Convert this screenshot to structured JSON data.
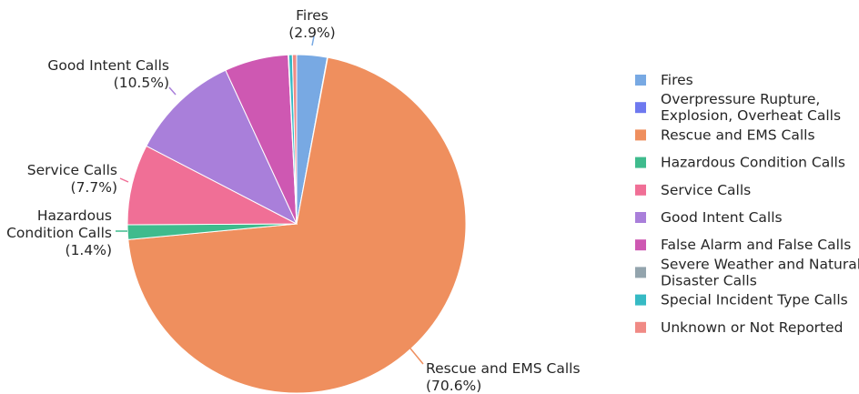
{
  "chart_data": {
    "type": "pie",
    "slices": [
      {
        "name": "Fires",
        "value": 2.9,
        "color": "#78a9e3",
        "label_lines": [
          "Fires",
          "(2.9%)"
        ]
      },
      {
        "name": "Overpressure Rupture, Explosion, Overheat Calls",
        "value": 0.05,
        "color": "#6e79ef",
        "legend_lines": [
          "Overpressure Rupture,",
          "Explosion, Overheat Calls"
        ]
      },
      {
        "name": "Rescue and EMS Calls",
        "value": 70.6,
        "color": "#ef8f5e",
        "label_lines": [
          "Rescue and EMS Calls",
          "(70.6%)"
        ]
      },
      {
        "name": "Hazardous Condition Calls",
        "value": 1.4,
        "color": "#3fbb8d",
        "label_lines": [
          "Hazardous",
          "Condition Calls",
          "(1.4%)"
        ]
      },
      {
        "name": "Service Calls",
        "value": 7.7,
        "color": "#f06f96",
        "label_lines": [
          "Service Calls",
          "(7.7%)"
        ]
      },
      {
        "name": "Good Intent Calls",
        "value": 10.5,
        "color": "#a97fda",
        "label_lines": [
          "Good Intent Calls",
          "(10.5%)"
        ]
      },
      {
        "name": "False Alarm and False Calls",
        "value": 6.1,
        "color": "#ce58b2"
      },
      {
        "name": "Severe Weather and Natural Disaster Calls",
        "value": 0.05,
        "color": "#93a4ad",
        "legend_lines": [
          "Severe Weather and Natural",
          "Disaster Calls"
        ]
      },
      {
        "name": "Special Incident Type Calls",
        "value": 0.35,
        "color": "#36bac4"
      },
      {
        "name": "Unknown or Not Reported",
        "value": 0.4,
        "color": "#f08a85"
      }
    ],
    "start_angle_deg": 0,
    "direction": "clockwise",
    "legend_position": "right"
  }
}
